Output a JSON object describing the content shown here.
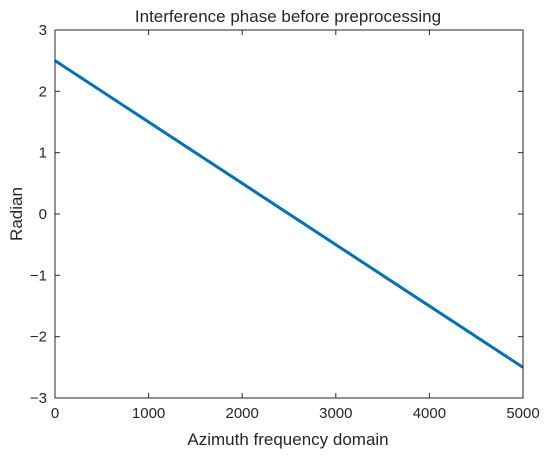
{
  "chart_data": {
    "type": "line",
    "title": "Interference phase before preprocessing",
    "xlabel": "Azimuth frequency domain",
    "ylabel": "Radian",
    "xlim": [
      0,
      5000
    ],
    "ylim": [
      -3,
      3
    ],
    "xticks": [
      0,
      1000,
      2000,
      3000,
      4000,
      5000
    ],
    "xtick_labels": [
      "0",
      "1000",
      "2000",
      "3000",
      "4000",
      "5000"
    ],
    "yticks": [
      -3,
      -2,
      -1,
      0,
      1,
      2,
      3
    ],
    "ytick_labels": [
      "−3",
      "−2",
      "−1",
      "0",
      "1",
      "2",
      "3"
    ],
    "grid": false,
    "series": [
      {
        "color": "#0072bd",
        "x": [
          0,
          5000
        ],
        "y": [
          2.5,
          -2.5
        ]
      }
    ]
  }
}
